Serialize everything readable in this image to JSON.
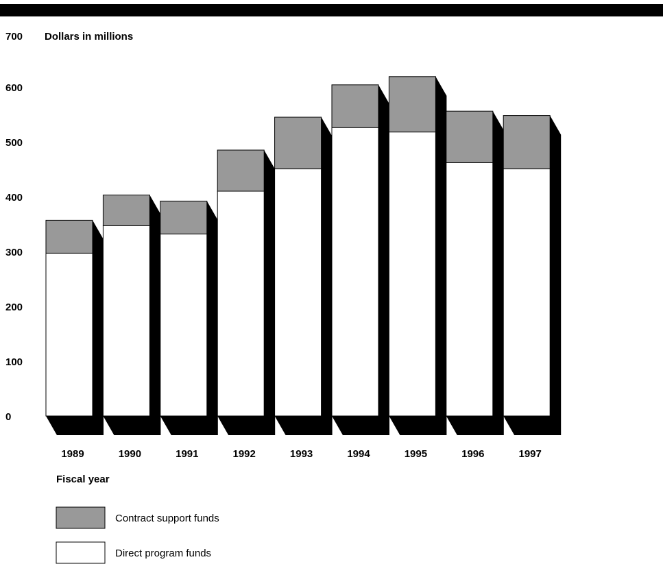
{
  "chart_data": {
    "type": "bar",
    "stacked": true,
    "three_d": true,
    "title": "Dollars in millions",
    "xlabel": "Fiscal year",
    "ylabel": "",
    "ylim": [
      0,
      700
    ],
    "yticks": [
      0,
      100,
      200,
      300,
      400,
      500,
      600,
      700
    ],
    "grid": false,
    "legend_position": "bottom-left",
    "categories": [
      "1989",
      "1990",
      "1991",
      "1992",
      "1993",
      "1994",
      "1995",
      "1996",
      "1997"
    ],
    "series": [
      {
        "name": "Direct program funds",
        "values": [
          297,
          347,
          332,
          410,
          451,
          526,
          518,
          462,
          451
        ]
      },
      {
        "name": "Contract support funds",
        "values": [
          60,
          56,
          60,
          75,
          94,
          78,
          101,
          94,
          97
        ]
      }
    ],
    "colors": {
      "Direct program funds": "#ffffff",
      "Contract support funds": "#999999",
      "shadow": "#000000",
      "top_band": "#000000"
    }
  }
}
